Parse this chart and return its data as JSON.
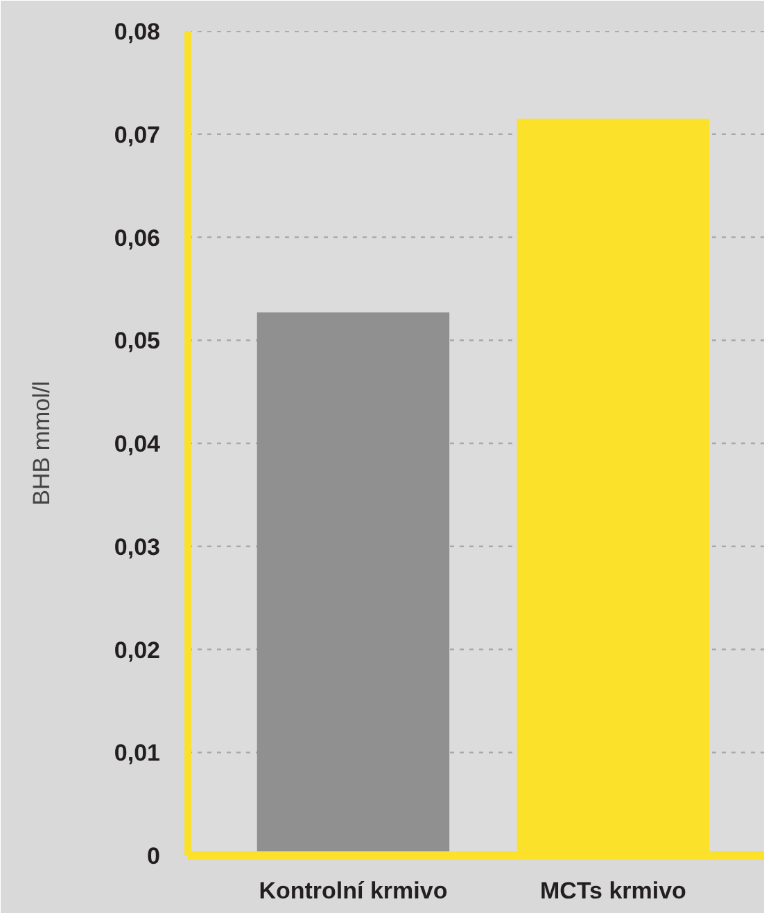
{
  "chart_data": {
    "type": "bar",
    "ylabel": "BHB mmol/l",
    "categories": [
      "Kontrolní krmivo",
      "MCTs krmivo"
    ],
    "values": [
      0.0527,
      0.0715
    ],
    "colors": [
      "#8f908f",
      "#fbe12a"
    ],
    "ylim": [
      0,
      0.08
    ],
    "yticks": [
      0,
      {
        "value": 0.01,
        "label": "0,01"
      },
      {
        "value": 0.02,
        "label": "0,02"
      },
      {
        "value": 0.03,
        "label": "0,03"
      },
      {
        "value": 0.04,
        "label": "0,04"
      },
      {
        "value": 0.05,
        "label": "0,05"
      },
      {
        "value": 0.06,
        "label": "0,06"
      },
      {
        "value": 0.07,
        "label": "0,07"
      },
      {
        "value": 0.08,
        "label": "0,08"
      }
    ],
    "grid": "y"
  }
}
